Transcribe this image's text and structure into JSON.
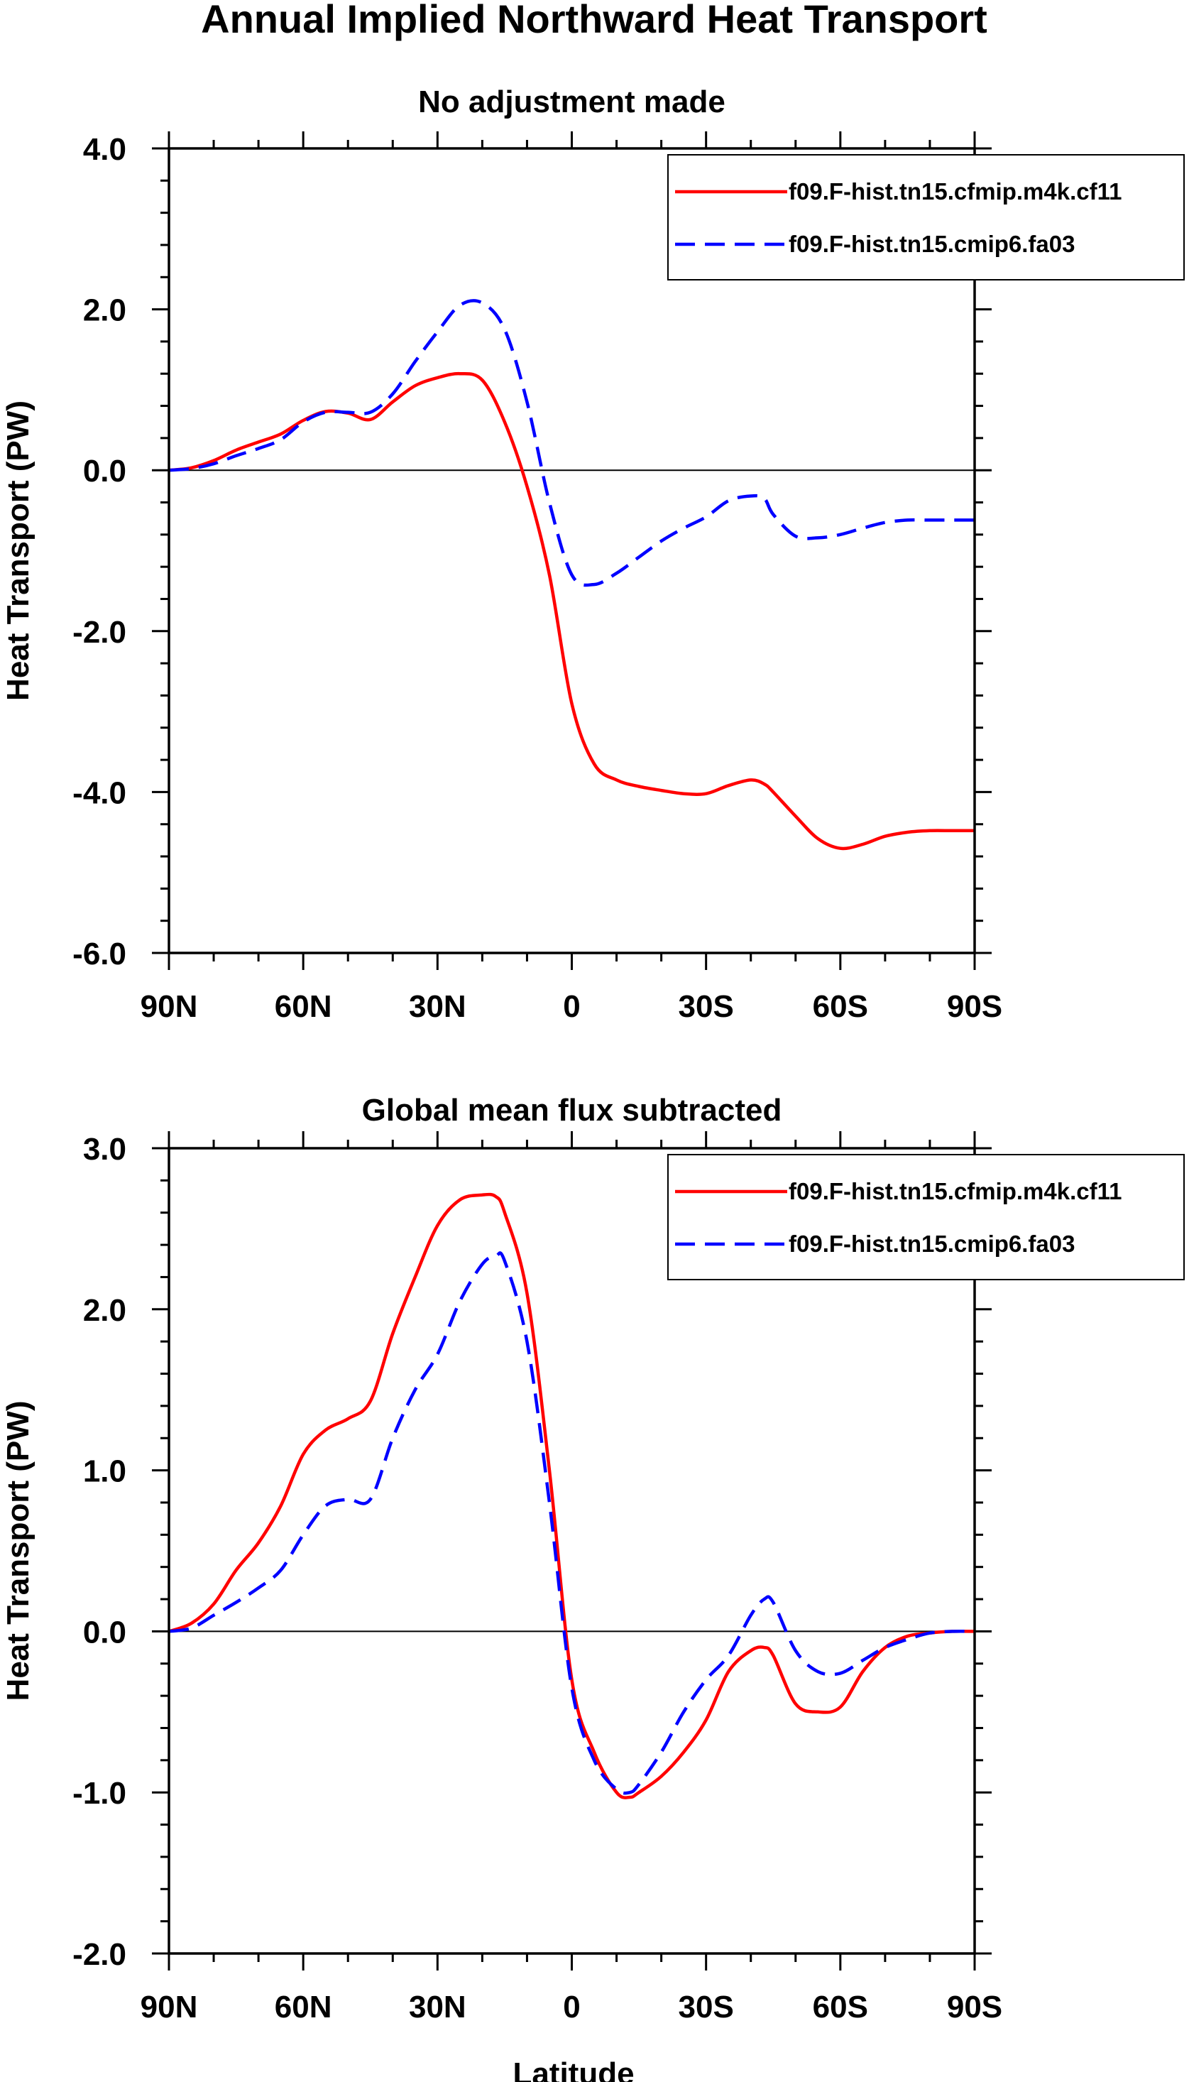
{
  "title": "Annual Implied Northward Heat Transport",
  "xlabel": "Latitude",
  "colors": {
    "series_a": "#ff0000",
    "series_b": "#0000ff"
  },
  "chart_data": [
    {
      "type": "line",
      "title": "No adjustment made",
      "ylabel": "Heat Transport (PW)",
      "xlabel": "",
      "xlim": [
        90,
        -90
      ],
      "ylim": [
        -6,
        4
      ],
      "xticks": [
        {
          "value": 90,
          "label": "90N"
        },
        {
          "value": 60,
          "label": "60N"
        },
        {
          "value": 30,
          "label": "30N"
        },
        {
          "value": 0,
          "label": "0"
        },
        {
          "value": -30,
          "label": "30S"
        },
        {
          "value": -60,
          "label": "60S"
        },
        {
          "value": -90,
          "label": "90S"
        }
      ],
      "yticks": [
        {
          "value": 4,
          "label": "4.0"
        },
        {
          "value": 2,
          "label": "2.0"
        },
        {
          "value": 0,
          "label": "0.0"
        },
        {
          "value": -2,
          "label": "-2.0"
        },
        {
          "value": -4,
          "label": "-4.0"
        },
        {
          "value": -6,
          "label": "-6.0"
        }
      ],
      "legend_position": "top-right",
      "series": [
        {
          "name": "f09.F-hist.tn15.cfmip.m4k.cf11",
          "style": "solid",
          "x": [
            90,
            85,
            80,
            75,
            70,
            65,
            60,
            55,
            50,
            45,
            40,
            35,
            30,
            25,
            20,
            15,
            10,
            5,
            0,
            -5,
            -10,
            -15,
            -20,
            -25,
            -30,
            -35,
            -40,
            -43,
            -45,
            -50,
            -55,
            -60,
            -65,
            -70,
            -75,
            -80,
            -85,
            -90
          ],
          "y": [
            0.0,
            0.03,
            0.12,
            0.25,
            0.35,
            0.45,
            0.62,
            0.73,
            0.71,
            0.63,
            0.85,
            1.05,
            1.15,
            1.2,
            1.12,
            0.6,
            -0.2,
            -1.3,
            -2.9,
            -3.65,
            -3.85,
            -3.93,
            -3.98,
            -4.02,
            -4.02,
            -3.92,
            -3.85,
            -3.9,
            -4.0,
            -4.3,
            -4.58,
            -4.7,
            -4.65,
            -4.55,
            -4.5,
            -4.48,
            -4.48,
            -4.48
          ]
        },
        {
          "name": "f09.F-hist.tn15.cmip6.fa03",
          "style": "dashed",
          "x": [
            90,
            85,
            80,
            75,
            70,
            65,
            60,
            55,
            50,
            45,
            40,
            35,
            30,
            25,
            20,
            15,
            10,
            5,
            0,
            -5,
            -10,
            -15,
            -20,
            -25,
            -30,
            -35,
            -40,
            -43,
            -45,
            -50,
            -55,
            -60,
            -65,
            -70,
            -75,
            -80,
            -85,
            -90
          ],
          "y": [
            0.0,
            0.02,
            0.08,
            0.18,
            0.27,
            0.38,
            0.6,
            0.72,
            0.72,
            0.72,
            0.95,
            1.35,
            1.72,
            2.05,
            2.08,
            1.75,
            0.85,
            -0.4,
            -1.3,
            -1.42,
            -1.28,
            -1.08,
            -0.88,
            -0.72,
            -0.58,
            -0.38,
            -0.32,
            -0.35,
            -0.55,
            -0.82,
            -0.84,
            -0.8,
            -0.72,
            -0.65,
            -0.62,
            -0.62,
            -0.62,
            -0.62
          ]
        }
      ]
    },
    {
      "type": "line",
      "title": "Global mean flux subtracted",
      "ylabel": "Heat Transport (PW)",
      "xlabel": "Latitude",
      "xlim": [
        90,
        -90
      ],
      "ylim": [
        -2,
        3
      ],
      "xticks": [
        {
          "value": 90,
          "label": "90N"
        },
        {
          "value": 60,
          "label": "60N"
        },
        {
          "value": 30,
          "label": "30N"
        },
        {
          "value": 0,
          "label": "0"
        },
        {
          "value": -30,
          "label": "30S"
        },
        {
          "value": -60,
          "label": "60S"
        },
        {
          "value": -90,
          "label": "90S"
        }
      ],
      "yticks": [
        {
          "value": 3,
          "label": "3.0"
        },
        {
          "value": 2,
          "label": "2.0"
        },
        {
          "value": 1,
          "label": "1.0"
        },
        {
          "value": 0,
          "label": "0.0"
        },
        {
          "value": -1,
          "label": "-1.0"
        },
        {
          "value": -2,
          "label": "-2.0"
        }
      ],
      "legend_position": "top-right",
      "series": [
        {
          "name": "f09.F-hist.tn15.cfmip.m4k.cf11",
          "style": "solid",
          "x": [
            90,
            85,
            80,
            75,
            70,
            65,
            60,
            55,
            50,
            45,
            40,
            35,
            30,
            25,
            20,
            17,
            15,
            10,
            5,
            0,
            -5,
            -10,
            -13,
            -15,
            -20,
            -25,
            -30,
            -35,
            -40,
            -43,
            -45,
            -50,
            -55,
            -60,
            -65,
            -70,
            -75,
            -80,
            -85,
            -90
          ],
          "y": [
            0.0,
            0.05,
            0.17,
            0.38,
            0.55,
            0.78,
            1.1,
            1.25,
            1.32,
            1.43,
            1.85,
            2.2,
            2.52,
            2.68,
            2.71,
            2.7,
            2.6,
            2.1,
            1.0,
            -0.3,
            -0.75,
            -1.0,
            -1.03,
            -1.0,
            -0.9,
            -0.75,
            -0.55,
            -0.25,
            -0.12,
            -0.1,
            -0.15,
            -0.45,
            -0.5,
            -0.47,
            -0.25,
            -0.1,
            -0.03,
            -0.01,
            0.0,
            0.0
          ]
        },
        {
          "name": "f09.F-hist.tn15.cmip6.fa03",
          "style": "dashed",
          "x": [
            90,
            85,
            80,
            75,
            70,
            65,
            60,
            55,
            50,
            45,
            40,
            35,
            30,
            25,
            20,
            17,
            15,
            10,
            5,
            0,
            -5,
            -10,
            -13,
            -15,
            -20,
            -25,
            -30,
            -35,
            -40,
            -43,
            -45,
            -50,
            -55,
            -60,
            -65,
            -70,
            -75,
            -80,
            -85,
            -90
          ],
          "y": [
            0.0,
            0.02,
            0.1,
            0.18,
            0.27,
            0.38,
            0.6,
            0.78,
            0.82,
            0.82,
            1.2,
            1.5,
            1.72,
            2.05,
            2.28,
            2.33,
            2.3,
            1.8,
            0.8,
            -0.35,
            -0.8,
            -0.98,
            -1.0,
            -0.95,
            -0.75,
            -0.5,
            -0.3,
            -0.15,
            0.1,
            0.2,
            0.18,
            -0.12,
            -0.25,
            -0.26,
            -0.18,
            -0.1,
            -0.05,
            -0.01,
            0.0,
            0.0
          ]
        }
      ]
    }
  ]
}
